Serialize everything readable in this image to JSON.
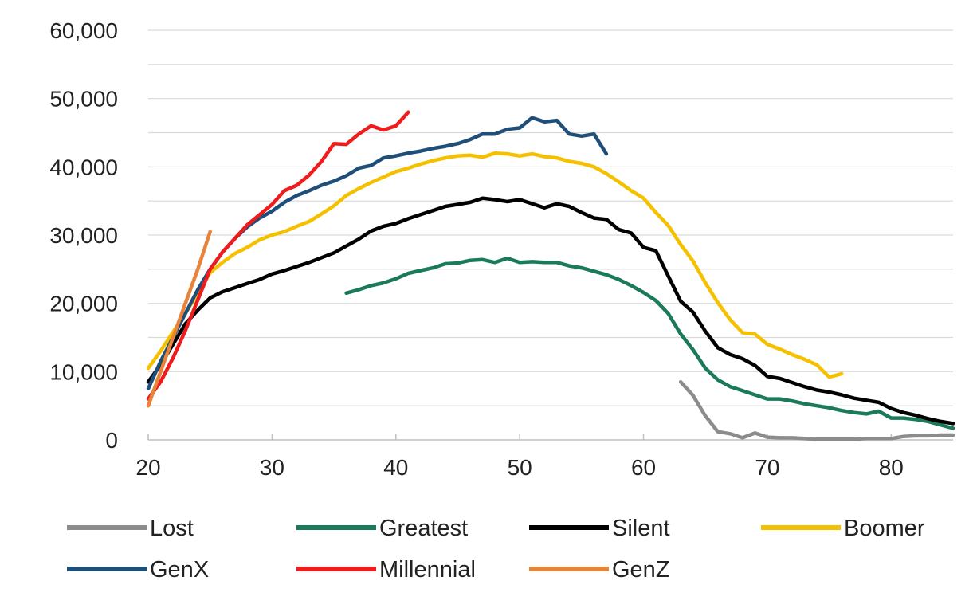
{
  "chart_data": {
    "type": "line",
    "title": "",
    "xlabel": "",
    "ylabel": "",
    "xlim": [
      20,
      85
    ],
    "ylim": [
      0,
      60000
    ],
    "grid": true,
    "legend_position": "bottom",
    "x_ticks": [
      20,
      30,
      40,
      50,
      60,
      70,
      80
    ],
    "x_tick_labels": [
      "20",
      "30",
      "40",
      "50",
      "60",
      "70",
      "80"
    ],
    "y_ticks": [
      0,
      10000,
      20000,
      30000,
      40000,
      50000,
      60000
    ],
    "y_tick_labels": [
      "0",
      "10,000",
      "20,000",
      "30,000",
      "40,000",
      "50,000",
      "60,000"
    ],
    "series": [
      {
        "name": "Lost",
        "color": "#8c8c8c",
        "x": [
          63,
          64,
          65,
          66,
          67,
          68,
          69,
          70,
          71,
          72,
          73,
          74,
          75,
          76,
          77,
          78,
          79,
          80,
          81,
          82,
          83,
          84,
          85
        ],
        "values": [
          8500,
          6500,
          3500,
          1200,
          900,
          300,
          1000,
          400,
          300,
          300,
          200,
          100,
          100,
          100,
          100,
          200,
          200,
          200,
          500,
          600,
          600,
          700,
          700
        ]
      },
      {
        "name": "Greatest",
        "color": "#1a7a5a",
        "x": [
          36,
          37,
          38,
          39,
          40,
          41,
          42,
          43,
          44,
          45,
          46,
          47,
          48,
          49,
          50,
          51,
          52,
          53,
          54,
          55,
          56,
          57,
          58,
          59,
          60,
          61,
          62,
          63,
          64,
          65,
          66,
          67,
          68,
          69,
          70,
          71,
          72,
          73,
          74,
          75,
          76,
          77,
          78,
          79,
          80,
          81,
          82,
          83,
          84,
          85
        ],
        "values": [
          21500,
          22000,
          22600,
          23000,
          23600,
          24400,
          24800,
          25200,
          25800,
          25900,
          26300,
          26400,
          26000,
          26600,
          26000,
          26100,
          26000,
          26000,
          25500,
          25200,
          24700,
          24200,
          23500,
          22600,
          21600,
          20400,
          18500,
          15500,
          13200,
          10500,
          8800,
          7800,
          7200,
          6600,
          6000,
          6000,
          5700,
          5300,
          5000,
          4700,
          4300,
          4000,
          3800,
          4200,
          3200,
          3200,
          3000,
          2700,
          2200,
          1700
        ]
      },
      {
        "name": "Silent",
        "color": "#000000",
        "x": [
          20,
          21,
          22,
          23,
          24,
          25,
          26,
          27,
          28,
          29,
          30,
          31,
          32,
          33,
          34,
          35,
          36,
          37,
          38,
          39,
          40,
          41,
          42,
          43,
          44,
          45,
          46,
          47,
          48,
          49,
          50,
          51,
          52,
          53,
          54,
          55,
          56,
          57,
          58,
          59,
          60,
          61,
          62,
          63,
          64,
          65,
          66,
          67,
          68,
          69,
          70,
          71,
          72,
          73,
          74,
          75,
          76,
          77,
          78,
          79,
          80,
          81,
          82,
          83,
          84,
          85
        ],
        "values": [
          8500,
          11000,
          14000,
          17000,
          19000,
          20800,
          21700,
          22300,
          22900,
          23500,
          24300,
          24800,
          25400,
          26000,
          26700,
          27400,
          28400,
          29400,
          30600,
          31300,
          31700,
          32400,
          33000,
          33600,
          34200,
          34500,
          34800,
          35400,
          35200,
          34900,
          35200,
          34600,
          34000,
          34600,
          34200,
          33300,
          32500,
          32300,
          30800,
          30300,
          28200,
          27700,
          24000,
          20300,
          18700,
          15900,
          13500,
          12500,
          11900,
          10900,
          9300,
          9000,
          8400,
          7800,
          7300,
          7000,
          6600,
          6100,
          5800,
          5500,
          4600,
          4000,
          3600,
          3100,
          2700,
          2400
        ]
      },
      {
        "name": "Boomer",
        "color": "#f5c000",
        "x": [
          20,
          21,
          22,
          23,
          24,
          25,
          26,
          27,
          28,
          29,
          30,
          31,
          32,
          33,
          34,
          35,
          36,
          37,
          38,
          39,
          40,
          41,
          42,
          43,
          44,
          45,
          46,
          47,
          48,
          49,
          50,
          51,
          52,
          53,
          54,
          55,
          56,
          57,
          58,
          59,
          60,
          61,
          62,
          63,
          64,
          65,
          66,
          67,
          68,
          69,
          70,
          71,
          72,
          73,
          74,
          75,
          76
        ],
        "values": [
          10500,
          13000,
          15800,
          18500,
          21500,
          24500,
          26000,
          27300,
          28200,
          29300,
          30000,
          30500,
          31300,
          32000,
          33100,
          34300,
          35800,
          36800,
          37700,
          38500,
          39300,
          39800,
          40400,
          40900,
          41300,
          41600,
          41700,
          41400,
          42000,
          41900,
          41600,
          41900,
          41500,
          41300,
          40800,
          40500,
          40000,
          39000,
          37800,
          36500,
          35400,
          33300,
          31400,
          28600,
          26200,
          23000,
          20100,
          17600,
          15700,
          15500,
          14000,
          13300,
          12500,
          11800,
          11000,
          9200,
          9700
        ]
      },
      {
        "name": "GenX",
        "color": "#1f4e79",
        "x": [
          20,
          21,
          22,
          23,
          24,
          25,
          26,
          27,
          28,
          29,
          30,
          31,
          32,
          33,
          34,
          35,
          36,
          37,
          38,
          39,
          40,
          41,
          42,
          43,
          44,
          45,
          46,
          47,
          48,
          49,
          50,
          51,
          52,
          53,
          54,
          55,
          56,
          57
        ],
        "values": [
          7500,
          11500,
          15000,
          18500,
          22000,
          25000,
          27500,
          29500,
          31200,
          32500,
          33500,
          34800,
          35800,
          36500,
          37300,
          37900,
          38700,
          39800,
          40200,
          41300,
          41600,
          42000,
          42300,
          42700,
          43000,
          43400,
          44000,
          44800,
          44800,
          45500,
          45700,
          47200,
          46600,
          46800,
          44800,
          44500,
          44800,
          41900
        ]
      },
      {
        "name": "Millennial",
        "color": "#ee1c1c",
        "x": [
          20,
          21,
          22,
          23,
          24,
          25,
          26,
          27,
          28,
          29,
          30,
          31,
          32,
          33,
          34,
          35,
          36,
          37,
          38,
          39,
          40,
          41
        ],
        "values": [
          6000,
          8500,
          12000,
          16000,
          20500,
          25000,
          27500,
          29500,
          31500,
          33000,
          34500,
          36500,
          37300,
          38800,
          40800,
          43400,
          43300,
          44800,
          46000,
          45400,
          46000,
          48000
        ]
      },
      {
        "name": "GenZ",
        "color": "#e8833a",
        "x": [
          20,
          21,
          22,
          23,
          24,
          25
        ],
        "values": [
          5000,
          10000,
          15000,
          20000,
          25000,
          30500
        ]
      }
    ]
  }
}
